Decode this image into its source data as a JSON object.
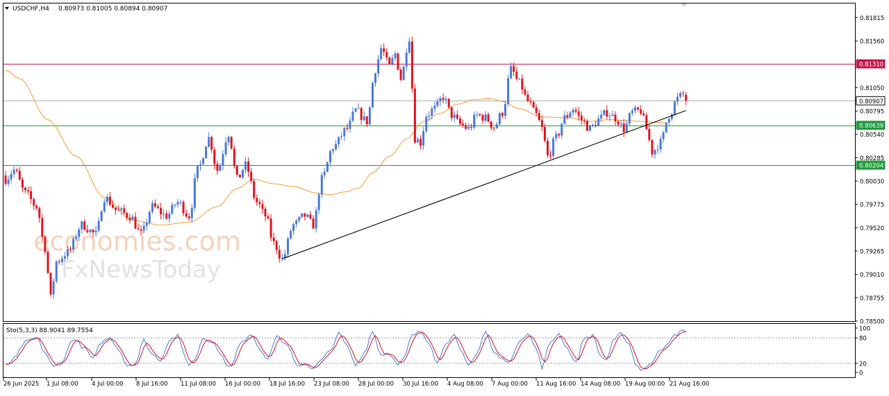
{
  "header": {
    "symbol_label": "USDCHF,H4",
    "ohlc_label": "0.80973 0.81005 0.80894 0.80907"
  },
  "watermark": {
    "line1": "economies.com",
    "line2": "FxNewsToday"
  },
  "chart_data": [
    {
      "type": "candlestick",
      "title": "USDCHF,H4",
      "ylim": [
        0.785,
        0.8197
      ],
      "y_ticks": [
        "0.81815",
        "0.81560",
        "0.81310",
        "0.81050",
        "0.80907",
        "0.80795",
        "0.80639",
        "0.80540",
        "0.80285",
        "0.80204",
        "0.80030",
        "0.79775",
        "0.79520",
        "0.79265",
        "0.79010",
        "0.78755",
        "0.78500"
      ],
      "x_ticks": [
        "26 Jun 2025",
        "1 Jul 08:00",
        "4 Jul 00:00",
        "8 Jul 16:00",
        "11 Jul 08:00",
        "16 Jul 00:00",
        "18 Jul 16:00",
        "23 Jul 08:00",
        "28 Jul 00:00",
        "30 Jul 16:00",
        "4 Aug 08:00",
        "7 Aug 00:00",
        "11 Aug 16:00",
        "14 Aug 08:00",
        "19 Aug 00:00",
        "21 Aug 16:00"
      ],
      "colors": {
        "bull": "#4a78d8",
        "bear": "#e0141e",
        "ma": "#f29a2e",
        "trendline": "#000000",
        "resistance": "#c2184a",
        "support": "#1e9b3a",
        "current": "#b0b0b0"
      },
      "horizontal_levels": [
        {
          "value": 0.8131,
          "label": "0.81310",
          "color": "#c2184a"
        },
        {
          "value": 0.80907,
          "label": "0.80907",
          "color": "#b0b0b0"
        },
        {
          "value": 0.80639,
          "label": "0.80639",
          "color": "#1e9b3a"
        },
        {
          "value": 0.80204,
          "label": "0.80204",
          "color": "#1e9b3a"
        }
      ],
      "trendline": {
        "from": {
          "bar": 98,
          "price": 0.7918
        },
        "to": {
          "bar": 241,
          "price": 0.808
        }
      },
      "moving_average_anchors": [
        [
          0,
          0.8124
        ],
        [
          5,
          0.8115
        ],
        [
          15,
          0.807
        ],
        [
          25,
          0.803
        ],
        [
          35,
          0.7985
        ],
        [
          45,
          0.796
        ],
        [
          55,
          0.7955
        ],
        [
          65,
          0.7958
        ],
        [
          75,
          0.7975
        ],
        [
          82,
          0.7995
        ],
        [
          88,
          0.8005
        ],
        [
          95,
          0.8
        ],
        [
          102,
          0.7997
        ],
        [
          110,
          0.799
        ],
        [
          115,
          0.7988
        ],
        [
          120,
          0.7991
        ],
        [
          125,
          0.7995
        ],
        [
          130,
          0.8012
        ],
        [
          136,
          0.803
        ],
        [
          142,
          0.8049
        ],
        [
          148,
          0.8068
        ],
        [
          154,
          0.8077
        ],
        [
          160,
          0.8087
        ],
        [
          166,
          0.8092
        ],
        [
          172,
          0.8093
        ],
        [
          176,
          0.809
        ],
        [
          182,
          0.8082
        ],
        [
          190,
          0.8073
        ],
        [
          200,
          0.8072
        ],
        [
          206,
          0.8068
        ],
        [
          214,
          0.807
        ],
        [
          220,
          0.8069
        ],
        [
          226,
          0.8068
        ],
        [
          230,
          0.8067
        ],
        [
          234,
          0.8067
        ]
      ],
      "price_path_anchors": [
        [
          0,
          0.8005
        ],
        [
          3,
          0.8015
        ],
        [
          7,
          0.799
        ],
        [
          11,
          0.7975
        ],
        [
          14,
          0.793
        ],
        [
          16,
          0.7875
        ],
        [
          18,
          0.7915
        ],
        [
          22,
          0.7925
        ],
        [
          27,
          0.7955
        ],
        [
          32,
          0.7945
        ],
        [
          35,
          0.7985
        ],
        [
          40,
          0.797
        ],
        [
          44,
          0.7965
        ],
        [
          48,
          0.7945
        ],
        [
          52,
          0.7975
        ],
        [
          57,
          0.7965
        ],
        [
          61,
          0.798
        ],
        [
          65,
          0.7965
        ],
        [
          68,
          0.8015
        ],
        [
          72,
          0.805
        ],
        [
          75,
          0.8015
        ],
        [
          79,
          0.8055
        ],
        [
          82,
          0.8005
        ],
        [
          85,
          0.802
        ],
        [
          89,
          0.798
        ],
        [
          92,
          0.7965
        ],
        [
          95,
          0.7935
        ],
        [
          98,
          0.7918
        ],
        [
          102,
          0.7955
        ],
        [
          106,
          0.7965
        ],
        [
          109,
          0.7955
        ],
        [
          112,
          0.8005
        ],
        [
          116,
          0.804
        ],
        [
          121,
          0.806
        ],
        [
          124,
          0.808
        ],
        [
          128,
          0.8068
        ],
        [
          131,
          0.8125
        ],
        [
          133,
          0.8148
        ],
        [
          136,
          0.8128
        ],
        [
          138,
          0.8142
        ],
        [
          140,
          0.8115
        ],
        [
          143,
          0.816
        ],
        [
          145,
          0.805
        ],
        [
          147,
          0.8045
        ],
        [
          149,
          0.8075
        ],
        [
          152,
          0.8082
        ],
        [
          155,
          0.8095
        ],
        [
          158,
          0.8075
        ],
        [
          161,
          0.8065
        ],
        [
          164,
          0.806
        ],
        [
          167,
          0.8075
        ],
        [
          170,
          0.8072
        ],
        [
          173,
          0.8062
        ],
        [
          176,
          0.8078
        ],
        [
          179,
          0.8125
        ],
        [
          182,
          0.811
        ],
        [
          185,
          0.809
        ],
        [
          188,
          0.8075
        ],
        [
          190,
          0.806
        ],
        [
          192,
          0.803
        ],
        [
          195,
          0.805
        ],
        [
          198,
          0.8072
        ],
        [
          201,
          0.8082
        ],
        [
          204,
          0.807
        ],
        [
          207,
          0.806
        ],
        [
          210,
          0.807
        ],
        [
          213,
          0.8078
        ],
        [
          216,
          0.8072
        ],
        [
          219,
          0.806
        ],
        [
          222,
          0.8078
        ],
        [
          225,
          0.808
        ],
        [
          227,
          0.806
        ],
        [
          229,
          0.8035
        ],
        [
          232,
          0.8045
        ],
        [
          235,
          0.8075
        ],
        [
          238,
          0.8093
        ],
        [
          240,
          0.8098
        ],
        [
          241,
          0.8091
        ]
      ]
    },
    {
      "type": "line",
      "title": "Sto(5,3,3) 88.9041 89.7554",
      "ylim": [
        0,
        100
      ],
      "y_ticks": [
        "100",
        "80",
        "20",
        "0"
      ],
      "levels": [
        80,
        20
      ],
      "series": [
        {
          "name": "Sto main",
          "color": "#4a78d8"
        },
        {
          "name": "Sto signal",
          "color": "#d0101a"
        }
      ],
      "colors": {
        "level": "#9a9a9a"
      },
      "wave_anchors": [
        [
          0,
          15
        ],
        [
          3,
          30
        ],
        [
          7,
          70
        ],
        [
          11,
          80
        ],
        [
          14,
          45
        ],
        [
          17,
          10
        ],
        [
          20,
          25
        ],
        [
          24,
          78
        ],
        [
          28,
          55
        ],
        [
          31,
          30
        ],
        [
          34,
          70
        ],
        [
          37,
          80
        ],
        [
          40,
          55
        ],
        [
          43,
          15
        ],
        [
          46,
          20
        ],
        [
          49,
          75
        ],
        [
          52,
          40
        ],
        [
          55,
          28
        ],
        [
          58,
          75
        ],
        [
          61,
          85
        ],
        [
          63,
          45
        ],
        [
          65,
          15
        ],
        [
          67,
          30
        ],
        [
          70,
          80
        ],
        [
          73,
          72
        ],
        [
          76,
          45
        ],
        [
          78,
          20
        ],
        [
          80,
          12
        ],
        [
          83,
          65
        ],
        [
          87,
          90
        ],
        [
          90,
          55
        ],
        [
          93,
          30
        ],
        [
          96,
          85
        ],
        [
          100,
          60
        ],
        [
          103,
          15
        ],
        [
          106,
          20
        ],
        [
          109,
          8
        ],
        [
          112,
          28
        ],
        [
          115,
          50
        ],
        [
          118,
          90
        ],
        [
          121,
          60
        ],
        [
          124,
          15
        ],
        [
          127,
          45
        ],
        [
          130,
          95
        ],
        [
          133,
          40
        ],
        [
          136,
          45
        ],
        [
          139,
          15
        ],
        [
          141,
          30
        ],
        [
          144,
          85
        ],
        [
          147,
          95
        ],
        [
          150,
          70
        ],
        [
          153,
          20
        ],
        [
          156,
          70
        ],
        [
          159,
          85
        ],
        [
          161,
          50
        ],
        [
          164,
          15
        ],
        [
          167,
          45
        ],
        [
          170,
          95
        ],
        [
          173,
          45
        ],
        [
          176,
          30
        ],
        [
          179,
          25
        ],
        [
          182,
          75
        ],
        [
          185,
          90
        ],
        [
          188,
          55
        ],
        [
          190,
          10
        ],
        [
          193,
          70
        ],
        [
          196,
          90
        ],
        [
          199,
          55
        ],
        [
          202,
          20
        ],
        [
          205,
          80
        ],
        [
          208,
          85
        ],
        [
          211,
          35
        ],
        [
          213,
          28
        ],
        [
          215,
          70
        ],
        [
          218,
          90
        ],
        [
          221,
          65
        ],
        [
          223,
          20
        ],
        [
          225,
          5
        ],
        [
          227,
          10
        ],
        [
          229,
          20
        ],
        [
          231,
          50
        ],
        [
          234,
          60
        ],
        [
          237,
          85
        ],
        [
          240,
          100
        ],
        [
          241,
          95
        ]
      ]
    }
  ]
}
